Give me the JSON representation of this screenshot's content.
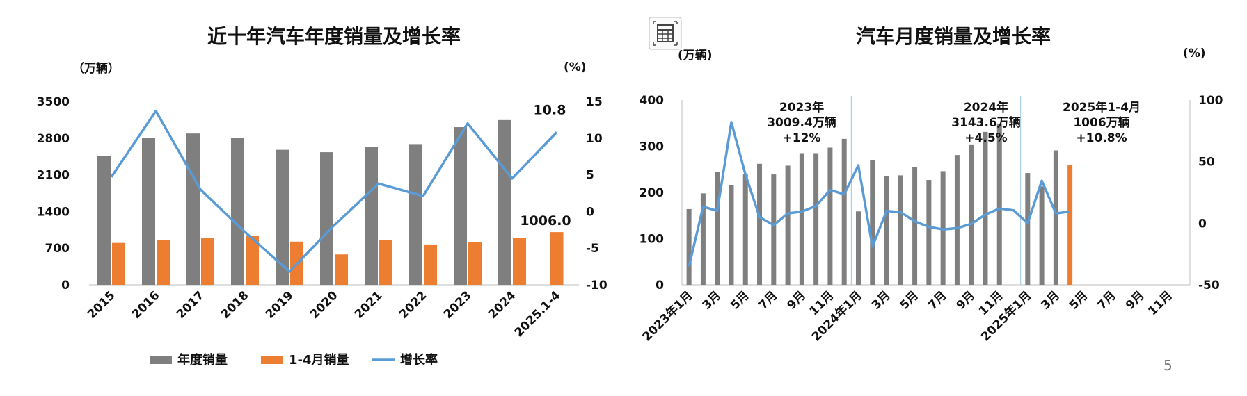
{
  "page_number": "5",
  "colors": {
    "annual": "#7f7f7f",
    "jan_apr": "#ed7d31",
    "growth": "#5b9bd5"
  },
  "icon": "calculator-icon",
  "chart_data": [
    {
      "type": "bar",
      "title": "近十年汽车年度销量及增长率",
      "y_left_unit": "（万辆）",
      "y_right_unit": "(%)",
      "y_left_lim": [
        0,
        3500
      ],
      "y_left_ticks": [
        0,
        700,
        1400,
        2100,
        2800,
        3500
      ],
      "y_right_lim": [
        -10,
        15
      ],
      "y_right_ticks": [
        -10,
        -5,
        0,
        5,
        10,
        15
      ],
      "categories": [
        "2015",
        "2016",
        "2017",
        "2018",
        "2019",
        "2020",
        "2021",
        "2022",
        "2023",
        "2024",
        "2025.1-4"
      ],
      "series": [
        {
          "name": "年度销量",
          "type": "bar",
          "axis": "left",
          "values": [
            2460,
            2803,
            2888,
            2808,
            2577,
            2531,
            2627,
            2686,
            3009,
            3144,
            null
          ]
        },
        {
          "name": "1-4月销量",
          "type": "bar",
          "axis": "left",
          "values": [
            800,
            855,
            890,
            940,
            825,
            580,
            860,
            770,
            820,
            900,
            1006
          ]
        },
        {
          "name": "增长率",
          "type": "line",
          "axis": "right",
          "values": [
            4.7,
            13.7,
            3.0,
            -2.8,
            -8.2,
            -1.9,
            3.8,
            2.1,
            12.0,
            4.5,
            10.8
          ]
        }
      ],
      "data_labels": [
        {
          "text": "10.8",
          "category": "2025.1-4",
          "series": "增长率"
        },
        {
          "text": "1006.0",
          "category": "2025.1-4",
          "series": "1-4月销量"
        }
      ],
      "legend": {
        "placement": "bottom",
        "items": [
          "年度销量",
          "1-4月销量",
          "增长率"
        ]
      }
    },
    {
      "type": "bar",
      "title": "汽车月度销量及增长率",
      "y_left_unit": "(万辆)",
      "y_right_unit": "(%)",
      "y_left_lim": [
        0,
        400
      ],
      "y_left_ticks": [
        0,
        100,
        200,
        300,
        400
      ],
      "y_right_lim": [
        -50,
        100
      ],
      "y_right_ticks": [
        -50,
        0,
        50,
        100
      ],
      "x_labels": [
        "2023年1月",
        "",
        "3月",
        "",
        "5月",
        "",
        "7月",
        "",
        "9月",
        "",
        "11月",
        "",
        "2024年1月",
        "",
        "3月",
        "",
        "5月",
        "",
        "7月",
        "",
        "9月",
        "",
        "11月",
        "",
        "2025年1月",
        "",
        "3月",
        "",
        "5月",
        "",
        "7月",
        "",
        "9月",
        "",
        "11月",
        ""
      ],
      "monthly_sales": [
        164,
        198,
        245,
        216,
        239,
        262,
        239,
        258,
        285,
        285,
        297,
        316,
        159,
        270,
        236,
        237,
        255,
        227,
        246,
        281,
        304,
        331,
        349,
        null,
        242,
        213,
        291,
        259,
        null,
        null,
        null,
        null,
        null,
        null,
        null,
        null
      ],
      "highlight_month_index": 27,
      "growth_rate": [
        -35,
        13.5,
        10,
        82,
        39.5,
        5,
        -1.5,
        8,
        9.5,
        14,
        27,
        23.5,
        47,
        -19,
        10,
        9,
        1.5,
        -3,
        -5,
        -4,
        -0.5,
        7,
        12,
        10.5,
        0,
        34.5,
        8,
        9.5
      ],
      "period_notes": [
        {
          "lines": [
            "2023年",
            "3009.4万辆",
            "+12%"
          ]
        },
        {
          "lines": [
            "2024年",
            "3143.6万辆",
            "+4.5%"
          ]
        },
        {
          "lines": [
            "2025年1-4月",
            "1006万辆",
            "+10.8%"
          ]
        }
      ]
    }
  ]
}
